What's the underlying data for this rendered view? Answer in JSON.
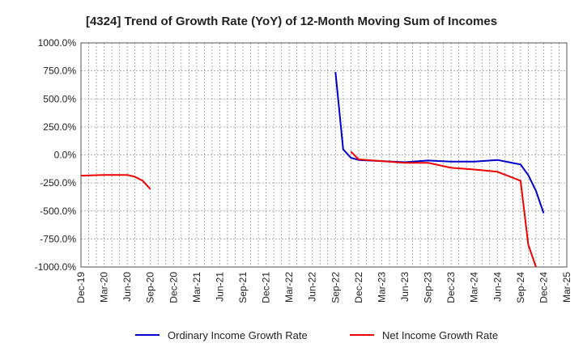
{
  "chart_data": {
    "type": "line",
    "title": "[4324]  Trend of Growth Rate (YoY) of 12-Month Moving Sum of Incomes",
    "xlabel": "",
    "ylabel": "",
    "ylim": [
      -1000,
      1000
    ],
    "y_ticks": [
      1000,
      750,
      500,
      250,
      0,
      -250,
      -500,
      -750,
      -1000
    ],
    "y_tick_labels": [
      "1000.0%",
      "750.0%",
      "500.0%",
      "250.0%",
      "0.0%",
      "-250.0%",
      "-500.0%",
      "-750.0%",
      "-1000.0%"
    ],
    "x_range": [
      "2019-12",
      "2025-03"
    ],
    "x_tick_labels": [
      "Dec-19",
      "Mar-20",
      "Jun-20",
      "Sep-20",
      "Dec-20",
      "Mar-21",
      "Jun-21",
      "Sep-21",
      "Dec-21",
      "Mar-22",
      "Jun-22",
      "Sep-22",
      "Dec-22",
      "Mar-23",
      "Jun-23",
      "Sep-23",
      "Dec-23",
      "Mar-24",
      "Jun-24",
      "Sep-24",
      "Dec-24",
      "Mar-25"
    ],
    "grid": true,
    "legend_position": "bottom",
    "series": [
      {
        "name": "Ordinary Income Growth Rate",
        "color": "#0000cc",
        "points": [
          [
            "2022-09",
            740
          ],
          [
            "2022-10",
            50
          ],
          [
            "2022-11",
            -25
          ],
          [
            "2022-12",
            -45
          ],
          [
            "2023-03",
            -55
          ],
          [
            "2023-06",
            -65
          ],
          [
            "2023-09",
            -50
          ],
          [
            "2023-12",
            -60
          ],
          [
            "2024-03",
            -60
          ],
          [
            "2024-06",
            -45
          ],
          [
            "2024-09",
            -85
          ],
          [
            "2024-10",
            -180
          ],
          [
            "2024-11",
            -320
          ],
          [
            "2024-12",
            -520
          ]
        ]
      },
      {
        "name": "Net Income Growth Rate",
        "color": "#ee0000",
        "points": [
          [
            "2019-12",
            -185
          ],
          [
            "2020-03",
            -178
          ],
          [
            "2020-06",
            -178
          ],
          [
            "2020-07",
            -195
          ],
          [
            "2020-08",
            -230
          ],
          [
            "2020-09",
            -305
          ],
          [
            "2022-11",
            30
          ],
          [
            "2022-12",
            -40
          ],
          [
            "2023-03",
            -55
          ],
          [
            "2023-06",
            -70
          ],
          [
            "2023-09",
            -70
          ],
          [
            "2023-12",
            -115
          ],
          [
            "2024-03",
            -130
          ],
          [
            "2024-06",
            -150
          ],
          [
            "2024-09",
            -230
          ],
          [
            "2024-10",
            -800
          ],
          [
            "2024-11",
            -1000
          ]
        ]
      }
    ]
  }
}
